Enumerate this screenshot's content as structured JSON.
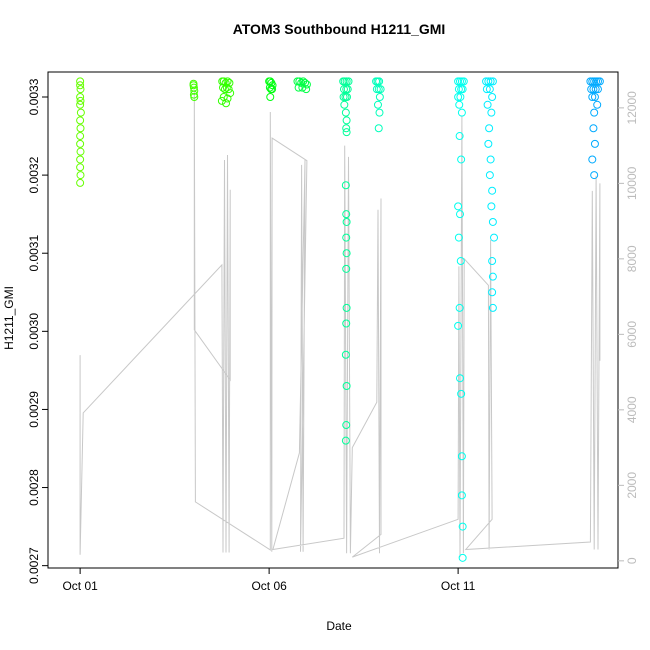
{
  "chart_data": {
    "type": "scatter",
    "title": "ATOM3 Southbound H1211_GMI",
    "x_label": "Date",
    "y_label": "H1211_GMI",
    "xlim": [
      0.15,
      15.23
    ],
    "xticks": [
      {
        "value": 1,
        "label": "Oct 01"
      },
      {
        "value": 6,
        "label": "Oct 06"
      },
      {
        "value": 11,
        "label": "Oct 11"
      }
    ],
    "ylim": [
      0.002697,
      0.003332
    ],
    "yticks": [
      0.0027,
      0.0028,
      0.0029,
      {
        "value": 0.003,
        "label": "0.0030"
      },
      0.0031,
      0.0032,
      0.0033
    ],
    "y2lim": [
      -190,
      12950
    ],
    "y2ticks": [
      0,
      2000,
      4000,
      6000,
      8000,
      10000,
      12000
    ],
    "series": [
      {
        "type": "line",
        "axis": "y2",
        "color": "#c8c8c8",
        "x": [
          1.0,
          1.0,
          1.08,
          4.75,
          4.78,
          4.82,
          4.86,
          4.9,
          4.94,
          4.97,
          4.97,
          4.02,
          4.02,
          4.05,
          6.03,
          6.03,
          6.07,
          6.08,
          7.0,
          6.83,
          6.86,
          6.9,
          6.95,
          6.8,
          6.1,
          7.98,
          8.0,
          8.05,
          8.1,
          8.15,
          8.2,
          8.85,
          8.88,
          8.92,
          8.96,
          8.96,
          8.2,
          11.0,
          11.02,
          11.05,
          11.1,
          11.14,
          11.16,
          11.8,
          11.82,
          11.86,
          11.9,
          11.2,
          14.5,
          14.55,
          14.6,
          14.65,
          14.7,
          14.75,
          14.75
        ],
        "values": [
          5450,
          160,
          3920,
          7840,
          220,
          10620,
          220,
          10750,
          220,
          9830,
          4790,
          6120,
          12480,
          1560,
          290,
          11890,
          240,
          11200,
          10600,
          240,
          10490,
          240,
          10620,
          2860,
          300,
          600,
          11000,
          200,
          10700,
          200,
          3000,
          4200,
          9300,
          200,
          9600,
          700,
          100,
          1100,
          7800,
          100,
          11800,
          200,
          8000,
          7300,
          300,
          8500,
          1100,
          300,
          500,
          9800,
          300,
          10200,
          300,
          10000,
          5300
        ]
      },
      {
        "color": "#66ff00",
        "x": [
          1.0,
          1.0,
          1.01,
          1.0,
          1.01,
          1.0,
          1.02,
          1.0,
          1.01,
          1.0,
          1.0,
          1.01,
          1.0,
          1.0,
          1.01,
          1.0
        ],
        "values": [
          0.00332,
          0.003315,
          0.00331,
          0.0033,
          0.003295,
          0.00329,
          0.00328,
          0.00327,
          0.00326,
          0.00325,
          0.00324,
          0.00323,
          0.00322,
          0.00321,
          0.0032,
          0.00319
        ]
      },
      {
        "color": "#44ff00",
        "x": [
          4.0,
          4.01,
          4.02,
          4.01,
          4.02,
          4.0
        ],
        "values": [
          0.003317,
          0.003312,
          0.003308,
          0.003303,
          0.0033,
          0.003315
        ]
      },
      {
        "color": "#33ff00",
        "x": [
          4.76,
          4.8,
          4.85,
          4.9,
          4.95,
          4.78,
          4.83,
          4.88,
          4.93,
          4.97,
          4.8,
          4.9,
          4.75,
          4.86
        ],
        "values": [
          0.00332,
          0.00332,
          0.003318,
          0.00332,
          0.003318,
          0.003312,
          0.00331,
          0.003312,
          0.00331,
          0.003305,
          0.0033,
          0.003298,
          0.003295,
          0.003292
        ]
      },
      {
        "color": "#00ff11",
        "x": [
          6.0,
          6.03,
          6.06,
          6.09,
          6.02,
          6.05,
          6.08,
          6.03
        ],
        "values": [
          0.00332,
          0.00332,
          0.003318,
          0.003315,
          0.003312,
          0.00331,
          0.00331,
          0.0033
        ]
      },
      {
        "color": "#00ff44",
        "x": [
          6.75,
          6.8,
          6.85,
          6.9,
          6.95,
          7.0,
          6.78,
          6.88,
          6.98
        ],
        "values": [
          0.00332,
          0.00332,
          0.003318,
          0.00332,
          0.003318,
          0.003316,
          0.003312,
          0.003312,
          0.00331
        ]
      },
      {
        "color": "#00ff99",
        "x": [
          7.96,
          8.0,
          8.05,
          8.1,
          7.98,
          8.04,
          8.08,
          7.97,
          8.02,
          8.06,
          7.99,
          8.03,
          8.05,
          8.04,
          8.05,
          8.03,
          8.04,
          8.05,
          8.04,
          8.05,
          8.04,
          8.05,
          8.04,
          8.03,
          8.05,
          8.04,
          8.03
        ],
        "values": [
          0.00332,
          0.00332,
          0.00332,
          0.00332,
          0.00331,
          0.00331,
          0.00331,
          0.0033,
          0.0033,
          0.0033,
          0.00329,
          0.00328,
          0.00327,
          0.00326,
          0.003255,
          0.003187,
          0.00315,
          0.00314,
          0.00312,
          0.0031,
          0.00308,
          0.00303,
          0.00301,
          0.00297,
          0.00293,
          0.00288,
          0.00286
        ]
      },
      {
        "color": "#00ffbb",
        "x": [
          8.83,
          8.87,
          8.91,
          8.95,
          8.85,
          8.9,
          8.93,
          8.88,
          8.92,
          8.9
        ],
        "values": [
          0.00332,
          0.00332,
          0.00332,
          0.00331,
          0.00331,
          0.00331,
          0.0033,
          0.00329,
          0.00328,
          0.00326
        ]
      },
      {
        "color": "#00ffee",
        "x": [
          11.0,
          11.05,
          11.1,
          11.15,
          11.02,
          11.08,
          11.12,
          11.0,
          11.06,
          11.03,
          11.1,
          11.04,
          11.08,
          11.0,
          11.05,
          11.02,
          11.07,
          11.04,
          11.0,
          11.05,
          11.08,
          11.1,
          11.1,
          11.12,
          11.12
        ],
        "values": [
          0.00332,
          0.00332,
          0.00332,
          0.00332,
          0.00331,
          0.00331,
          0.00331,
          0.0033,
          0.0033,
          0.00329,
          0.00328,
          0.00325,
          0.00322,
          0.00316,
          0.00315,
          0.00312,
          0.00309,
          0.00303,
          0.003007,
          0.00294,
          0.00292,
          0.00284,
          0.00279,
          0.00275,
          0.00271
        ]
      },
      {
        "color": "#00eeff",
        "x": [
          11.74,
          11.8,
          11.86,
          11.92,
          11.76,
          11.84,
          11.9,
          11.78,
          11.88,
          11.82,
          11.8,
          11.86,
          11.84,
          11.9,
          11.88,
          11.92,
          11.95,
          11.9,
          11.92,
          11.9,
          11.92
        ],
        "values": [
          0.00332,
          0.00332,
          0.00332,
          0.00332,
          0.00331,
          0.00331,
          0.0033,
          0.00329,
          0.00328,
          0.00326,
          0.00324,
          0.00322,
          0.0032,
          0.00318,
          0.00316,
          0.00314,
          0.00312,
          0.00309,
          0.00307,
          0.00305,
          0.00303
        ]
      },
      {
        "color": "#00aaff",
        "x": [
          14.5,
          14.55,
          14.6,
          14.65,
          14.7,
          14.75,
          14.52,
          14.58,
          14.64,
          14.7,
          14.55,
          14.62,
          14.68,
          14.6,
          14.58,
          14.62,
          14.55,
          14.6
        ],
        "values": [
          0.00332,
          0.00332,
          0.00332,
          0.00332,
          0.00332,
          0.00332,
          0.00331,
          0.00331,
          0.00331,
          0.00331,
          0.0033,
          0.0033,
          0.00329,
          0.00328,
          0.00326,
          0.00324,
          0.00322,
          0.0032
        ]
      }
    ]
  }
}
